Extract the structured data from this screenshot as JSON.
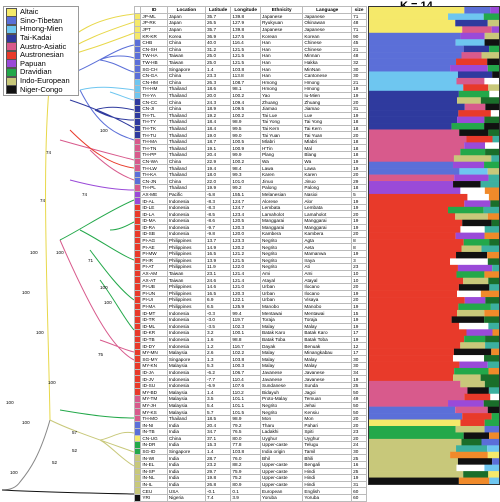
{
  "plot_label": "K = 14",
  "legend": [
    {
      "label": "Altaic",
      "color": "#f5e96a"
    },
    {
      "label": "Sino-Tibetan",
      "color": "#5b6fd8"
    },
    {
      "label": "Hmong-Mien",
      "color": "#6ec6f0"
    },
    {
      "label": "Tai-Kadai",
      "color": "#2f3a9e"
    },
    {
      "label": "Austro-Asiatic",
      "color": "#d85a8c"
    },
    {
      "label": "Austronesian",
      "color": "#e83a2a"
    },
    {
      "label": "Papuan",
      "color": "#9a4ad8"
    },
    {
      "label": "Dravidian",
      "color": "#23a84a"
    },
    {
      "label": "Indo-European",
      "color": "#c8c87a"
    },
    {
      "label": "Niger-Congo",
      "color": "#111111"
    }
  ],
  "table": {
    "headers": [
      "ID",
      "Location",
      "Latitude",
      "Longitude",
      "Ethnicity",
      "Language",
      "size"
    ],
    "rows": [
      [
        "JP-ML",
        "Japan",
        "35.7",
        "139.8",
        "Japanese",
        "Japanese",
        "71",
        "#f5e96a"
      ],
      [
        "JP-RK",
        "Japan",
        "26.5",
        "127.9",
        "Ryukyuan",
        "Okinawan",
        "48",
        "#f5e96a"
      ],
      [
        "JPT",
        "Japan",
        "35.7",
        "139.8",
        "Japanese",
        "Japanese",
        "71",
        "#f5e96a"
      ],
      [
        "KR-KR",
        "Korea",
        "36.9",
        "127.5",
        "Korean",
        "Korean",
        "90",
        "#f5e96a"
      ],
      [
        "CHB",
        "China",
        "40.0",
        "116.4",
        "Han",
        "Chinese",
        "45",
        "#5b6fd8"
      ],
      [
        "CN-SH",
        "China",
        "31.2",
        "121.5",
        "Han",
        "Chinese",
        "21",
        "#5b6fd8"
      ],
      [
        "TW-HA",
        "Taiwan",
        "25.0",
        "121.5",
        "Han",
        "Minnan",
        "48",
        "#5b6fd8"
      ],
      [
        "TW-HB",
        "Taiwan",
        "25.0",
        "121.5",
        "Han",
        "Hakka",
        "32",
        "#5b6fd8"
      ],
      [
        "SG-CH",
        "Singapore",
        "1.4",
        "103.8",
        "Han",
        "MinNan",
        "30",
        "#5b6fd8"
      ],
      [
        "CN-GA",
        "China",
        "23.3",
        "113.8",
        "Han",
        "Cantonese",
        "30",
        "#5b6fd8"
      ],
      [
        "CN-HM",
        "China",
        "26.3",
        "108.7",
        "Hmong",
        "Hmong",
        "21",
        "#6ec6f0"
      ],
      [
        "TH-HM",
        "Thailand",
        "18.6",
        "98.1",
        "Hmong",
        "Hmong",
        "19",
        "#6ec6f0"
      ],
      [
        "TH-YA",
        "Thailand",
        "20.0",
        "100.2",
        "Yao",
        "Iu-Mien",
        "19",
        "#6ec6f0"
      ],
      [
        "CN-CC",
        "China",
        "24.3",
        "109.4",
        "Zhuang",
        "Zhuang",
        "20",
        "#2f3a9e"
      ],
      [
        "CN-JI",
        "China",
        "18.9",
        "109.5",
        "Jiamao",
        "Jiamao",
        "31",
        "#2f3a9e"
      ],
      [
        "TH-TL",
        "Thailand",
        "19.2",
        "100.2",
        "Tai Lue",
        "Lue",
        "19",
        "#2f3a9e"
      ],
      [
        "TH-TY",
        "Thailand",
        "18.4",
        "98.9",
        "Tai Yong",
        "Tai Yong",
        "18",
        "#2f3a9e"
      ],
      [
        "TH-TK",
        "Thailand",
        "18.4",
        "99.5",
        "Tai Kern",
        "Tai Kern",
        "18",
        "#2f3a9e"
      ],
      [
        "TH-TU",
        "Thailand",
        "19.0",
        "99.0",
        "Tai Yuan",
        "Tai Yuan",
        "20",
        "#2f3a9e"
      ],
      [
        "TH-MA",
        "Thailand",
        "18.7",
        "100.5",
        "Mlabri",
        "Mlabri",
        "18",
        "#d85a8c"
      ],
      [
        "TH-TN",
        "Thailand",
        "19.1",
        "100.9",
        "H'Tin",
        "Mal",
        "18",
        "#d85a8c"
      ],
      [
        "TH-PP",
        "Thailand",
        "20.4",
        "99.9",
        "Plang",
        "Blang",
        "18",
        "#d85a8c"
      ],
      [
        "CN-WA",
        "China",
        "22.9",
        "100.2",
        "Wa",
        "Wa",
        "19",
        "#d85a8c"
      ],
      [
        "TH-LW",
        "Thailand",
        "19.4",
        "98.4",
        "Lawa",
        "Lawa",
        "19",
        "#d85a8c"
      ],
      [
        "TH-KA",
        "Thailand",
        "18.0",
        "99.3",
        "Karen",
        "Karen",
        "20",
        "#5b6fd8"
      ],
      [
        "CN-JN",
        "China",
        "22.0",
        "101.0",
        "Jinuo",
        "Jinuo",
        "29",
        "#5b6fd8"
      ],
      [
        "TH-PL",
        "Thailand",
        "19.9",
        "99.2",
        "Palong",
        "Palong",
        "18",
        "#d85a8c"
      ],
      [
        "AX-ME",
        "Pacific",
        "-5.8",
        "155.1",
        "Melanesian",
        "Nasioi",
        "5",
        "#9a4ad8"
      ],
      [
        "ID-AL",
        "Indonesia",
        "-8.3",
        "124.7",
        "Alorese",
        "Alor",
        "19",
        "#9a4ad8"
      ],
      [
        "ID-LE",
        "Indonesia",
        "-8.3",
        "124.7",
        "Lembata",
        "Lembata",
        "19",
        "#e83a2a"
      ],
      [
        "ID-LA",
        "Indonesia",
        "-8.5",
        "123.4",
        "Lamaholot",
        "Lamaholot",
        "20",
        "#e83a2a"
      ],
      [
        "ID-MA",
        "Indonesia",
        "-8.6",
        "120.5",
        "Manggarai",
        "Manggarai",
        "19",
        "#e83a2a"
      ],
      [
        "ID-RA",
        "Indonesia",
        "-9.7",
        "120.3",
        "Manggarai",
        "Manggarai",
        "19",
        "#e83a2a"
      ],
      [
        "ID-SB",
        "Indonesia",
        "-9.8",
        "120.0",
        "Kambera",
        "Kambera",
        "20",
        "#e83a2a"
      ],
      [
        "PI-AG",
        "Philippines",
        "13.7",
        "123.3",
        "Negrito",
        "Agta",
        "8",
        "#e83a2a"
      ],
      [
        "PI-AE",
        "Philippines",
        "14.9",
        "120.2",
        "Negrito",
        "Aeta",
        "8",
        "#e83a2a"
      ],
      [
        "PI-MW",
        "Philippines",
        "16.5",
        "121.2",
        "Negrito",
        "Mamanwa",
        "19",
        "#e83a2a"
      ],
      [
        "PI-IR",
        "Philippines",
        "13.9",
        "121.5",
        "Negrito",
        "Iraya",
        "3",
        "#e83a2a"
      ],
      [
        "PI-AT",
        "Philippines",
        "11.9",
        "122.0",
        "Negrito",
        "Ati",
        "23",
        "#e83a2a"
      ],
      [
        "AX-AM",
        "Taiwan",
        "23.1",
        "121.4",
        "Ami",
        "Ami",
        "10",
        "#e83a2a"
      ],
      [
        "AX-AT",
        "Taiwan",
        "24.6",
        "121.4",
        "Atayal",
        "Atayal",
        "10",
        "#e83a2a"
      ],
      [
        "PI-UB",
        "Philippines",
        "14.6",
        "121.0",
        "Urban",
        "Ilocano",
        "20",
        "#e83a2a"
      ],
      [
        "PI-UN",
        "Philippines",
        "16.5",
        "120.3",
        "Urban",
        "Ilocano",
        "19",
        "#e83a2a"
      ],
      [
        "PI-UI",
        "Philippines",
        "6.9",
        "122.1",
        "Urban",
        "Visaya",
        "20",
        "#e83a2a"
      ],
      [
        "PI-MA",
        "Philippines",
        "6.5",
        "125.9",
        "Manobo",
        "Manobo",
        "19",
        "#e83a2a"
      ],
      [
        "ID-MT",
        "Indonesia",
        "-0.3",
        "99.4",
        "Mentawai",
        "Mentawai",
        "15",
        "#e83a2a"
      ],
      [
        "ID-TR",
        "Indonesia",
        "-3.0",
        "119.7",
        "Toraja",
        "Toraja",
        "19",
        "#e83a2a"
      ],
      [
        "ID-ML",
        "Indonesia",
        "-3.5",
        "102.3",
        "Malay",
        "Malay",
        "19",
        "#e83a2a"
      ],
      [
        "ID-KR",
        "Indonesia",
        "3.2",
        "100.1",
        "Batak Karo",
        "Batak Karo",
        "17",
        "#e83a2a"
      ],
      [
        "ID-TB",
        "Indonesia",
        "1.6",
        "98.8",
        "Batak Toba",
        "Batak Toba",
        "19",
        "#e83a2a"
      ],
      [
        "ID-DY",
        "Indonesia",
        "1.2",
        "116.7",
        "Dayak",
        "Benuak",
        "12",
        "#e83a2a"
      ],
      [
        "MY-MN",
        "Malaysia",
        "2.6",
        "102.2",
        "Malay",
        "Minangkabau",
        "17",
        "#e83a2a"
      ],
      [
        "SG-MY",
        "Singapore",
        "1.3",
        "103.8",
        "Malay",
        "Malay",
        "30",
        "#e83a2a"
      ],
      [
        "MY-KN",
        "Malaysia",
        "5.3",
        "100.3",
        "Malay",
        "Malay",
        "30",
        "#e83a2a"
      ],
      [
        "ID-JA",
        "Indonesia",
        "-6.2",
        "106.7",
        "Javanese",
        "Javanese",
        "34",
        "#e83a2a"
      ],
      [
        "ID-JV",
        "Indonesia",
        "-7.7",
        "110.4",
        "Javanese",
        "Javanese",
        "19",
        "#e83a2a"
      ],
      [
        "ID-SU",
        "Indonesia",
        "-6.9",
        "107.6",
        "Sundanese",
        "Sunda",
        "25",
        "#e83a2a"
      ],
      [
        "MY-BD",
        "Malaysia",
        "1.4",
        "110.2",
        "Bidayuh",
        "Jagoi",
        "50",
        "#e83a2a"
      ],
      [
        "MY-TM",
        "Malaysia",
        "3.5",
        "101.1",
        "Proto-Malay",
        "Temuan",
        "49",
        "#d85a8c"
      ],
      [
        "MY-JH",
        "Malaysia",
        "5.4",
        "101.1",
        "Negrito",
        "Jehai",
        "50",
        "#d85a8c"
      ],
      [
        "MY-KS",
        "Malaysia",
        "5.7",
        "101.5",
        "Negrito",
        "Kensiu",
        "50",
        "#d85a8c"
      ],
      [
        "TH-MO",
        "Thailand",
        "18.5",
        "98.9",
        "Mon",
        "Mon",
        "20",
        "#d85a8c"
      ],
      [
        "IN-NI",
        "India",
        "20.4",
        "79.2",
        "Tharu",
        "Pahari",
        "20",
        "#5b6fd8"
      ],
      [
        "IN-TB",
        "India",
        "34.7",
        "76.5",
        "Ladakhi",
        "Spiti",
        "23",
        "#5b6fd8"
      ],
      [
        "CN-UG",
        "China",
        "37.1",
        "80.0",
        "Uyghur",
        "Uyghur",
        "20",
        "#f5e96a"
      ],
      [
        "IN-DR",
        "India",
        "15.3",
        "77.8",
        "Upper-caste",
        "Telugu",
        "24",
        "#23a84a"
      ],
      [
        "SG-ID",
        "Singapore",
        "1.4",
        "103.8",
        "India origin",
        "Tamil",
        "30",
        "#23a84a"
      ],
      [
        "IN-WI",
        "India",
        "28.7",
        "76.0",
        "Bhil",
        "Bhili",
        "25",
        "#c8c87a"
      ],
      [
        "IN-EL",
        "India",
        "23.2",
        "88.2",
        "Upper-caste",
        "Bengali",
        "16",
        "#c8c87a"
      ],
      [
        "IN-SP",
        "India",
        "29.7",
        "75.9",
        "Upper-caste",
        "Hindi",
        "25",
        "#c8c87a"
      ],
      [
        "IN-NL",
        "India",
        "19.8",
        "75.2",
        "Upper-caste",
        "Hindi",
        "19",
        "#c8c87a"
      ],
      [
        "IN-IL",
        "India",
        "26.8",
        "80.9",
        "Upper-caste",
        "Hindi",
        "31",
        "#c8c87a"
      ],
      [
        "CEU",
        "USA",
        "-0.1",
        "0.1",
        "European",
        "English",
        "60",
        "#c8c87a"
      ],
      [
        "YRI",
        "Nigeria",
        "7.4",
        "3.9",
        "Yoruba",
        "Yoruba",
        "60",
        "#111111"
      ]
    ]
  },
  "tree_support": [
    "100",
    "100",
    "100",
    "74",
    "100",
    "74",
    "74",
    "100",
    "100",
    "100",
    "100",
    "100",
    "100",
    "100",
    "100",
    "100",
    "75",
    "71",
    "100",
    "100",
    "100",
    "100",
    "100",
    "96",
    "100",
    "100",
    "100",
    "100",
    "100",
    "76",
    "100",
    "82",
    "100",
    "100",
    "52",
    "52",
    "57",
    "100",
    "100",
    "100"
  ]
}
